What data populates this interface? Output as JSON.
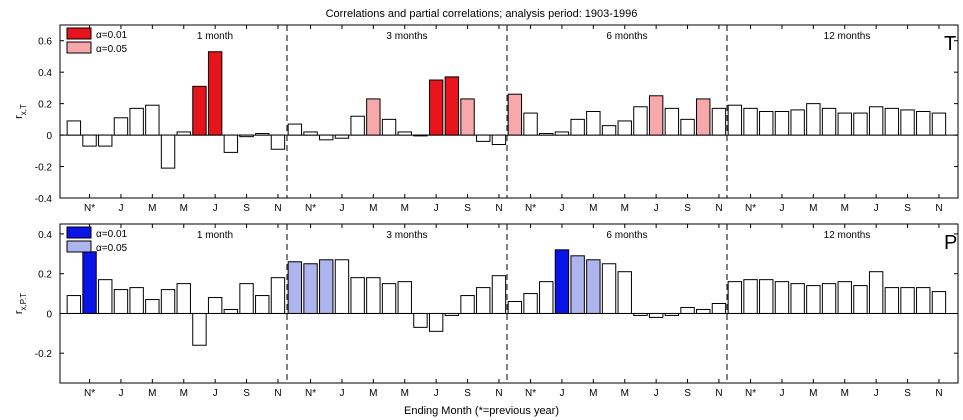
{
  "title": "Correlations and partial correlations; analysis period: 1903-1996",
  "xlabel": "Ending Month (*=previous year)",
  "month_ticks": [
    "N*",
    "J",
    "M",
    "M",
    "J",
    "S",
    "N"
  ],
  "window_labels": [
    "1 month",
    "3 months",
    "6 months",
    "12 months"
  ],
  "legend_labels": [
    "α=0.01",
    "α=0.05"
  ],
  "chart_data": [
    {
      "type": "bar",
      "panel_label": "T",
      "ylabel": "r x,T",
      "ylim": [
        -0.4,
        0.7
      ],
      "yticks": [
        -0.4,
        -0.2,
        0,
        0.2,
        0.4,
        0.6
      ],
      "ytick_labels": [
        "-0.4",
        "-0.2",
        "0",
        "0.2",
        "0.4",
        "0.6"
      ],
      "colors": {
        "sig01": "#e8141c",
        "sig05": "#f7a8aa",
        "ns": "#ffffff"
      },
      "windows": [
        {
          "label": "1 month",
          "values": [
            0.09,
            -0.07,
            -0.07,
            0.11,
            0.17,
            0.19,
            -0.21,
            0.02,
            0.31,
            0.53,
            -0.11,
            -0.01,
            0.01,
            -0.09
          ],
          "significance": [
            "ns",
            "ns",
            "ns",
            "ns",
            "ns",
            "ns",
            "ns",
            "ns",
            "sig01",
            "sig01",
            "ns",
            "ns",
            "ns",
            "ns"
          ]
        },
        {
          "label": "3 months",
          "values": [
            0.07,
            0.02,
            -0.03,
            -0.02,
            0.12,
            0.23,
            0.1,
            0.02,
            0.0,
            0.35,
            0.37,
            0.23,
            -0.04,
            -0.06
          ],
          "significance": [
            "ns",
            "ns",
            "ns",
            "ns",
            "ns",
            "sig05",
            "ns",
            "ns",
            "ns",
            "sig01",
            "sig01",
            "sig05",
            "ns",
            "ns"
          ]
        },
        {
          "label": "6 months",
          "values": [
            0.26,
            0.14,
            0.01,
            0.02,
            0.1,
            0.15,
            0.06,
            0.09,
            0.18,
            0.25,
            0.17,
            0.1,
            0.23,
            0.17
          ],
          "significance": [
            "sig05",
            "ns",
            "ns",
            "ns",
            "ns",
            "ns",
            "ns",
            "ns",
            "ns",
            "sig05",
            "ns",
            "ns",
            "sig05",
            "ns"
          ]
        },
        {
          "label": "12 months",
          "values": [
            0.19,
            0.17,
            0.15,
            0.15,
            0.16,
            0.2,
            0.17,
            0.14,
            0.14,
            0.18,
            0.17,
            0.16,
            0.15,
            0.14
          ],
          "significance": [
            "ns",
            "ns",
            "ns",
            "ns",
            "ns",
            "ns",
            "ns",
            "ns",
            "ns",
            "ns",
            "ns",
            "ns",
            "ns",
            "ns"
          ]
        }
      ]
    },
    {
      "type": "bar",
      "panel_label": "P",
      "ylabel": "r x,P.T",
      "ylim": [
        -0.35,
        0.45
      ],
      "yticks": [
        -0.2,
        0,
        0.2,
        0.4
      ],
      "ytick_labels": [
        "-0.2",
        "0",
        "0.2",
        "0.4"
      ],
      "colors": {
        "sig01": "#0a14e6",
        "sig05": "#aeb4ee",
        "ns": "#ffffff"
      },
      "windows": [
        {
          "label": "1 month",
          "values": [
            0.09,
            0.31,
            0.17,
            0.12,
            0.13,
            0.07,
            0.12,
            0.15,
            -0.16,
            0.08,
            0.02,
            0.15,
            0.09,
            0.18
          ],
          "significance": [
            "ns",
            "sig01",
            "ns",
            "ns",
            "ns",
            "ns",
            "ns",
            "ns",
            "ns",
            "ns",
            "ns",
            "ns",
            "ns",
            "ns"
          ]
        },
        {
          "label": "3 months",
          "values": [
            0.26,
            0.25,
            0.27,
            0.27,
            0.18,
            0.18,
            0.15,
            0.16,
            -0.07,
            -0.09,
            -0.01,
            0.09,
            0.13,
            0.19
          ],
          "significance": [
            "sig05",
            "sig05",
            "sig05",
            "ns",
            "ns",
            "ns",
            "ns",
            "ns",
            "ns",
            "ns",
            "ns",
            "ns",
            "ns",
            "ns"
          ]
        },
        {
          "label": "6 months",
          "values": [
            0.06,
            0.1,
            0.16,
            0.32,
            0.29,
            0.27,
            0.25,
            0.21,
            -0.01,
            -0.02,
            -0.01,
            0.03,
            0.02,
            0.05
          ],
          "significance": [
            "ns",
            "ns",
            "ns",
            "sig01",
            "sig05",
            "sig05",
            "ns",
            "ns",
            "ns",
            "ns",
            "ns",
            "ns",
            "ns",
            "ns"
          ]
        },
        {
          "label": "12 months",
          "values": [
            0.16,
            0.17,
            0.17,
            0.16,
            0.15,
            0.14,
            0.15,
            0.16,
            0.14,
            0.21,
            0.13,
            0.13,
            0.13,
            0.11
          ],
          "significance": [
            "ns",
            "ns",
            "ns",
            "ns",
            "ns",
            "ns",
            "ns",
            "ns",
            "ns",
            "ns",
            "ns",
            "ns",
            "ns",
            "ns"
          ]
        }
      ]
    }
  ]
}
